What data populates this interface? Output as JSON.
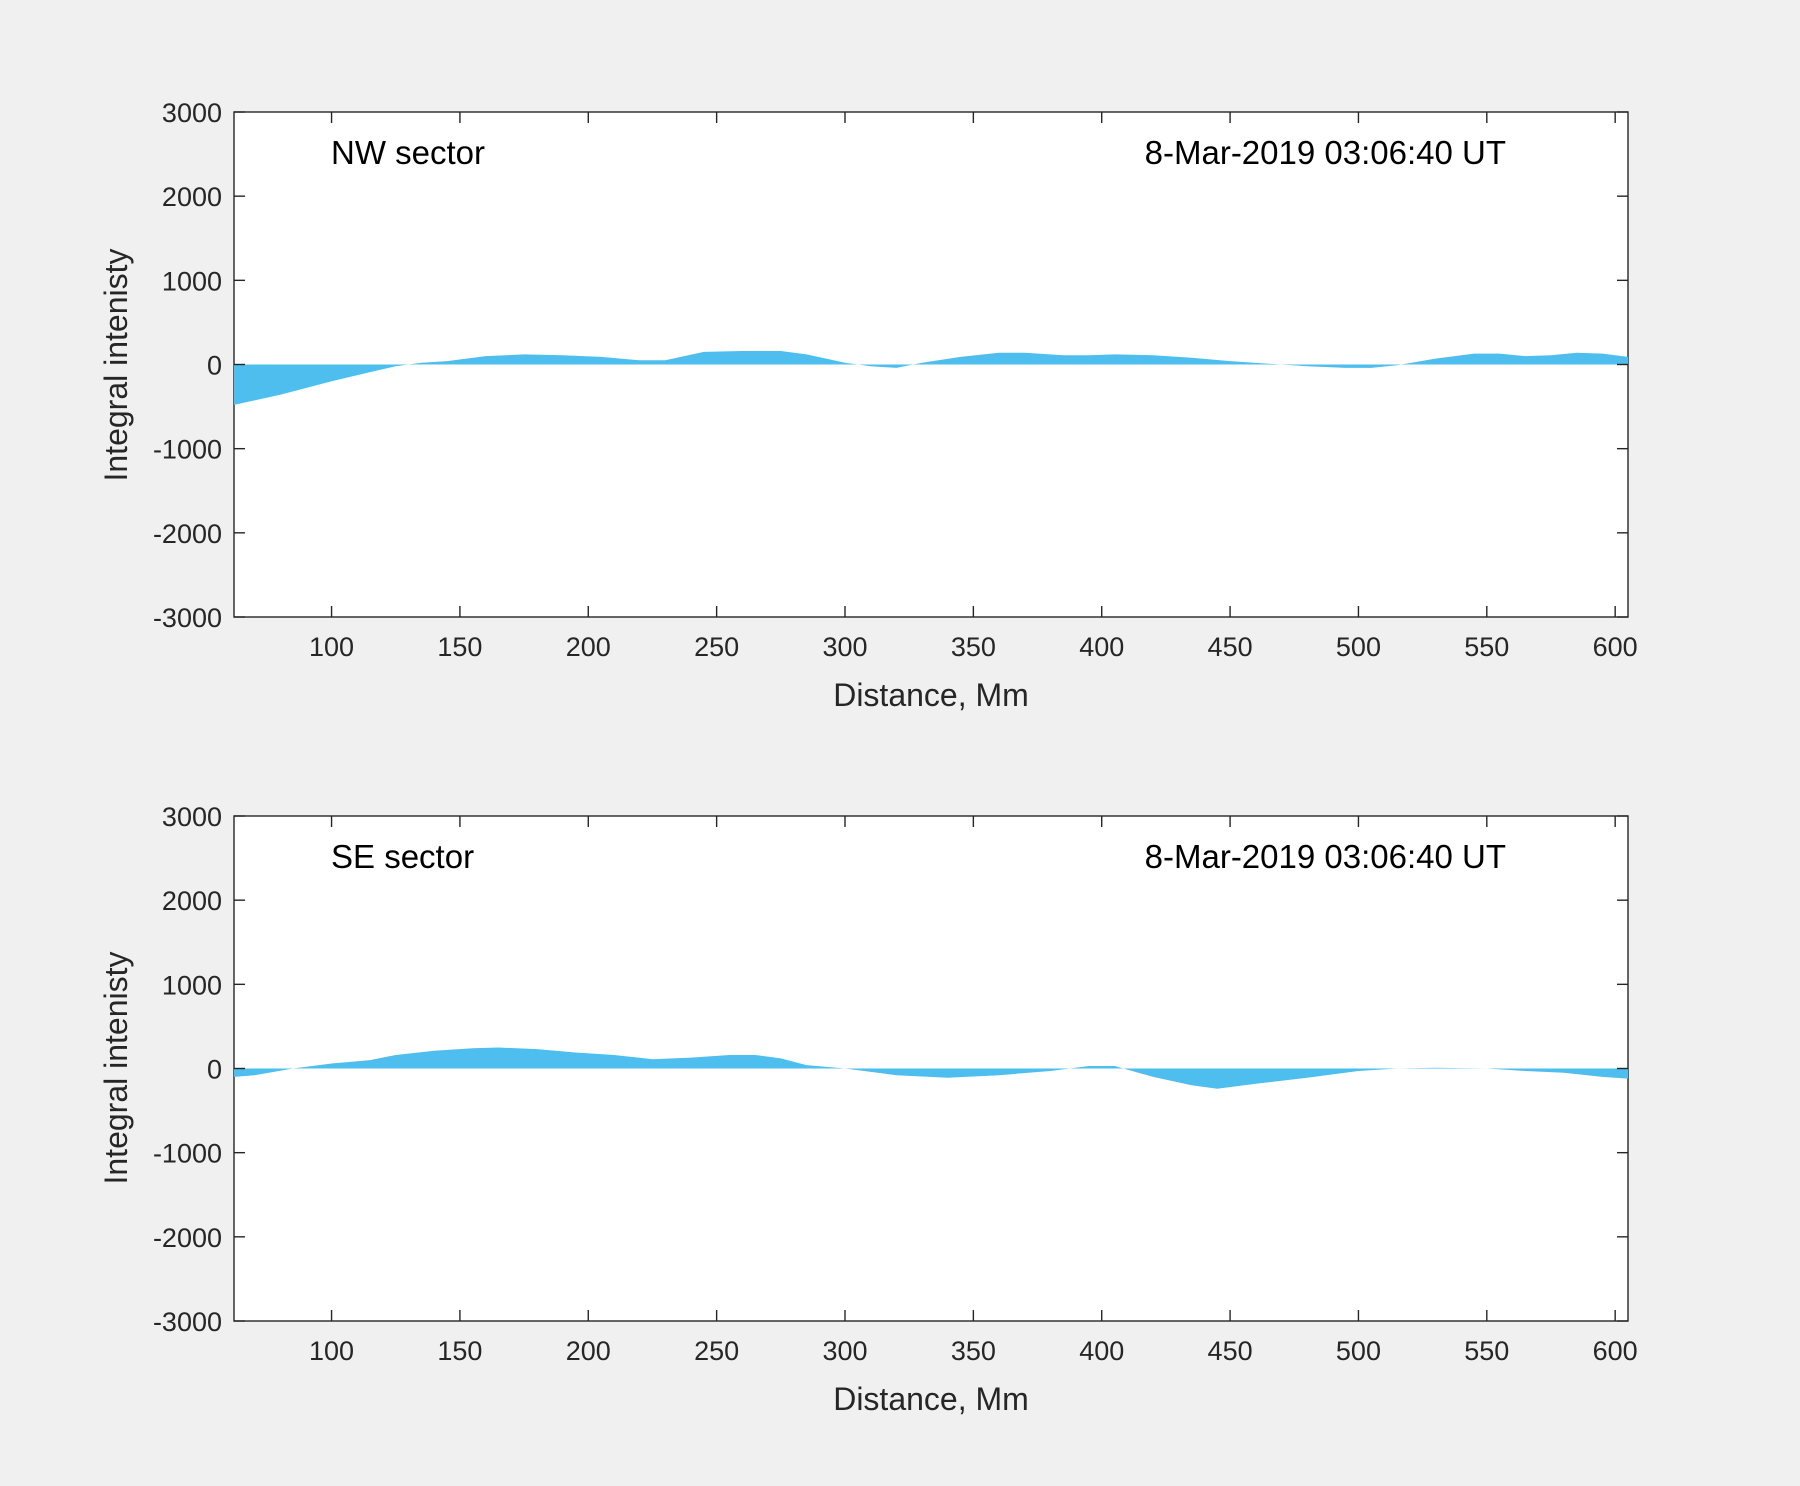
{
  "colors": {
    "fill": "#4dbeee",
    "background": "#f0f0f0",
    "axes": "#262626"
  },
  "chart_data": [
    {
      "type": "area",
      "title": "",
      "xlabel": "Distance, Mm",
      "ylabel": "Integral intenisty",
      "xlim": [
        62,
        605
      ],
      "ylim": [
        -3000,
        3000
      ],
      "xticks": [
        100,
        150,
        200,
        250,
        300,
        350,
        400,
        450,
        500,
        550,
        600
      ],
      "yticks": [
        3000,
        2000,
        1000,
        0,
        -1000,
        -2000,
        -3000
      ],
      "grid": false,
      "annotations": {
        "sector": "NW sector",
        "timestamp": "8-Mar-2019 03:06:40 UT"
      },
      "series": [
        {
          "x": [
            62,
            80,
            100,
            115,
            125,
            135,
            145,
            160,
            175,
            190,
            205,
            220,
            230,
            245,
            260,
            275,
            285,
            300,
            310,
            320,
            330,
            345,
            360,
            370,
            385,
            395,
            405,
            420,
            435,
            450,
            465,
            480,
            495,
            505,
            515,
            530,
            545,
            555,
            565,
            575,
            585,
            595,
            605
          ],
          "y": [
            -480,
            -360,
            -200,
            -90,
            -20,
            20,
            40,
            100,
            120,
            110,
            90,
            50,
            50,
            150,
            160,
            160,
            120,
            20,
            -20,
            -40,
            20,
            90,
            140,
            140,
            110,
            110,
            120,
            110,
            80,
            40,
            10,
            -20,
            -40,
            -40,
            -10,
            70,
            130,
            130,
            100,
            110,
            140,
            130,
            90
          ]
        }
      ]
    },
    {
      "type": "area",
      "title": "",
      "xlabel": "Distance, Mm",
      "ylabel": "Integral intenisty",
      "xlim": [
        62,
        605
      ],
      "ylim": [
        -3000,
        3000
      ],
      "xticks": [
        100,
        150,
        200,
        250,
        300,
        350,
        400,
        450,
        500,
        550,
        600
      ],
      "yticks": [
        3000,
        2000,
        1000,
        0,
        -1000,
        -2000,
        -3000
      ],
      "grid": false,
      "annotations": {
        "sector": "SE sector",
        "timestamp": "8-Mar-2019 03:06:40 UT"
      },
      "series": [
        {
          "x": [
            62,
            70,
            85,
            100,
            115,
            125,
            140,
            155,
            165,
            180,
            195,
            210,
            225,
            240,
            255,
            265,
            275,
            285,
            300,
            320,
            340,
            360,
            380,
            395,
            405,
            420,
            435,
            445,
            460,
            480,
            500,
            515,
            530,
            550,
            565,
            580,
            595,
            605
          ],
          "y": [
            -100,
            -80,
            0,
            60,
            100,
            160,
            210,
            240,
            250,
            230,
            190,
            160,
            110,
            130,
            160,
            160,
            120,
            40,
            0,
            -80,
            -110,
            -80,
            -30,
            30,
            30,
            -100,
            -200,
            -240,
            -180,
            -110,
            -30,
            0,
            10,
            0,
            -30,
            -50,
            -100,
            -120
          ]
        }
      ]
    }
  ]
}
